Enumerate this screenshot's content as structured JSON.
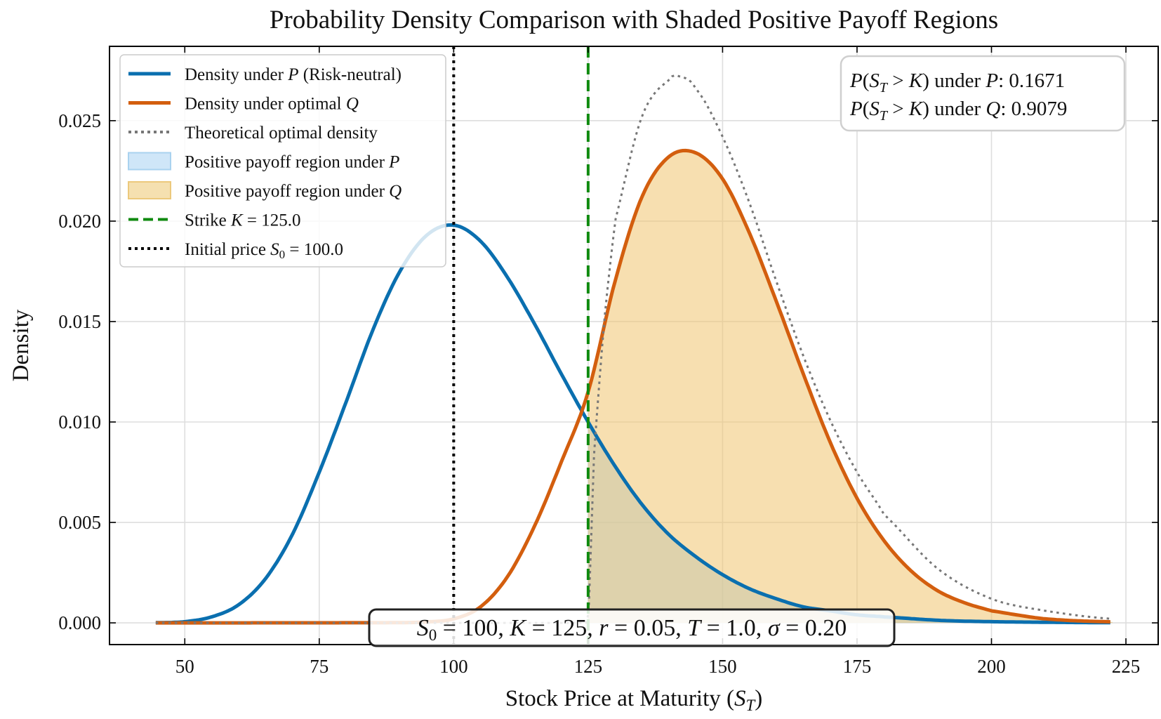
{
  "chart_data": {
    "type": "line",
    "title": "Probability Density Comparison with Shaded Positive Payoff Regions",
    "xlabel": "Stock Price at Maturity (S_T)",
    "ylabel": "Density",
    "xlim": [
      36,
      231
    ],
    "ylim": [
      -0.00108,
      0.0287
    ],
    "x_ticks": [
      50,
      75,
      100,
      125,
      150,
      175,
      200,
      225
    ],
    "y_ticks": [
      0.0,
      0.005,
      0.01,
      0.015,
      0.02,
      0.025
    ],
    "x_tick_labels": [
      "50",
      "75",
      "100",
      "125",
      "150",
      "175",
      "200",
      "225"
    ],
    "y_tick_labels": [
      "0.000",
      "0.005",
      "0.010",
      "0.015",
      "0.020",
      "0.025"
    ],
    "grid": true,
    "legend_placement": "top-left",
    "x_range_data": [
      44.6,
      222.5
    ],
    "series": [
      {
        "name": "Density under P (Risk-neutral)",
        "style": "solid",
        "color": "#0a6faf",
        "x": [
          44.6,
          50,
          55,
          60,
          65,
          70,
          75,
          80,
          85,
          90,
          95,
          100,
          105,
          110,
          115,
          120,
          125,
          130,
          135,
          140,
          145,
          150,
          155,
          160,
          165,
          170,
          175,
          180,
          190,
          200,
          210,
          222.5
        ],
        "y": [
          1e-05,
          6e-05,
          0.0003,
          0.0009,
          0.0022,
          0.0044,
          0.0075,
          0.011,
          0.0146,
          0.0175,
          0.0193,
          0.0198,
          0.019,
          0.0172,
          0.0149,
          0.0124,
          0.01,
          0.0078,
          0.0059,
          0.0044,
          0.0033,
          0.0024,
          0.0017,
          0.0012,
          0.0008,
          0.0006,
          0.0004,
          0.0003,
          0.00013,
          6e-05,
          3e-05,
          1e-05
        ]
      },
      {
        "name": "Density under optimal Q",
        "style": "solid",
        "color": "#d35e0e",
        "x": [
          44.6,
          90,
          95,
          100,
          105,
          110,
          115,
          120,
          125,
          130,
          135,
          140,
          145,
          150,
          155,
          160,
          165,
          170,
          175,
          180,
          185,
          190,
          195,
          200,
          210,
          222.5
        ],
        "y": [
          0.0,
          1e-05,
          5e-05,
          0.0002,
          0.0008,
          0.0023,
          0.0048,
          0.008,
          0.0115,
          0.017,
          0.0212,
          0.0232,
          0.0234,
          0.0221,
          0.0194,
          0.016,
          0.0124,
          0.009,
          0.0062,
          0.0041,
          0.0026,
          0.0016,
          0.001,
          0.0006,
          0.0002,
          5e-05
        ]
      },
      {
        "name": "Theoretical optimal density",
        "style": "dotted",
        "color": "#777777",
        "x": [
          44.6,
          110,
          115,
          120,
          125,
          126,
          128,
          130,
          135,
          140,
          142,
          145,
          150,
          155,
          160,
          165,
          170,
          175,
          180,
          190,
          200,
          210,
          222.5
        ],
        "y": [
          0.0,
          0.0,
          0.0,
          0.0,
          0.0,
          0.008,
          0.015,
          0.02,
          0.0252,
          0.027,
          0.0272,
          0.0266,
          0.0242,
          0.0209,
          0.017,
          0.0133,
          0.0101,
          0.0075,
          0.0054,
          0.0027,
          0.0012,
          0.0006,
          0.0002
        ]
      }
    ],
    "shaded_regions": [
      {
        "name": "Positive payoff region under P",
        "series": "Density under P (Risk-neutral)",
        "x_from": 125,
        "color": "#99ccf0"
      },
      {
        "name": "Positive payoff region under Q",
        "series": "Density under optimal Q",
        "x_from": 125,
        "color": "#f0c570"
      }
    ],
    "vertical_lines": [
      {
        "name": "Strike K = 125.0",
        "x": 125,
        "style": "dashed",
        "color": "#0f8a0f"
      },
      {
        "name": "Initial price S0 = 100.0",
        "x": 100,
        "style": "dotted",
        "color": "#000000"
      }
    ],
    "legend": [
      {
        "label": "Density under P (Risk-neutral)",
        "kind": "line",
        "style": "solid",
        "color": "#0a6faf"
      },
      {
        "label": "Density under optimal Q",
        "kind": "line",
        "style": "solid",
        "color": "#d35e0e"
      },
      {
        "label": "Theoretical optimal density",
        "kind": "line",
        "style": "dotted",
        "color": "#777777"
      },
      {
        "label": "Positive payoff region under P",
        "kind": "patch",
        "color": "#cfe6f8",
        "edge": "#a9d2ef"
      },
      {
        "label": "Positive payoff region under Q",
        "kind": "patch",
        "color": "#f5e0b0",
        "edge": "#ecc97c"
      },
      {
        "label": "Strike K = 125.0",
        "kind": "line",
        "style": "dashed",
        "color": "#0f8a0f"
      },
      {
        "label": "Initial price S0 = 100.0",
        "kind": "line",
        "style": "dotted",
        "color": "#000000"
      }
    ],
    "annotations": {
      "probabilities": [
        "P(S_T > K) under P: 0.1671",
        "P(S_T > K) under Q: 0.9079"
      ],
      "parameters": "S_0 = 100, K = 125, r = 0.05, T = 1.0, σ = 0.20"
    }
  }
}
